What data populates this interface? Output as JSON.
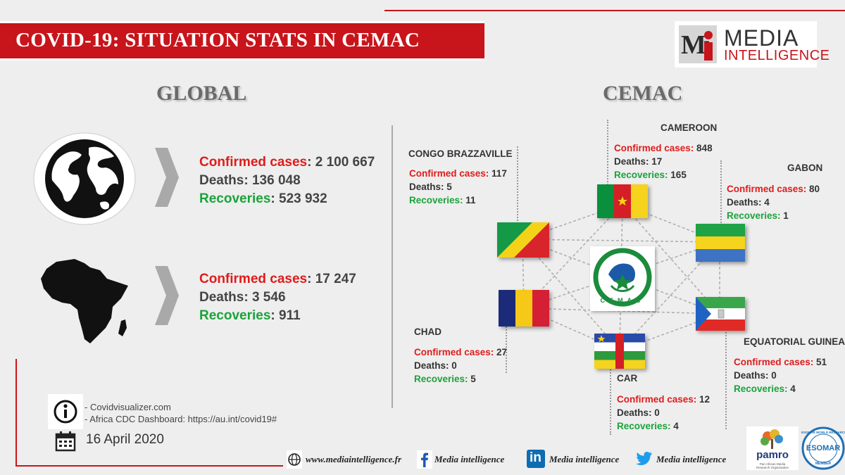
{
  "title": "COVID-19:  SITUATION STATS IN CEMAC",
  "brand": {
    "logo_letter": "Mi",
    "logo_top": "MEDIA",
    "logo_bottom": "INTELLIGENCE"
  },
  "global": {
    "heading": "GLOBAL",
    "world": {
      "confirmed_label": "Confirmed cases",
      "confirmed_value": ": 2 100 667",
      "deaths_label": "Deaths",
      "deaths_value": ": 136 048",
      "recoveries_label": "Recoveries",
      "recoveries_value": ": 523 932"
    },
    "africa": {
      "confirmed_label": "Confirmed cases",
      "confirmed_value": ": 17 247",
      "deaths_label": "Deaths",
      "deaths_value": ": 3 546",
      "recoveries_label": "Recoveries",
      "recoveries_value": ": 911"
    }
  },
  "cemac": {
    "heading": "CEMAC",
    "emblem_text": "CEMAC",
    "countries": {
      "cameroon": {
        "name": "CAMEROON",
        "confirmed": "848",
        "deaths": "17",
        "recoveries": "165"
      },
      "congo": {
        "name": "CONGO BRAZZAVILLE",
        "confirmed": "117",
        "deaths": "5",
        "recoveries": "11"
      },
      "gabon": {
        "name": "GABON",
        "confirmed": "80",
        "deaths": "4",
        "recoveries": "1"
      },
      "chad": {
        "name": "CHAD",
        "confirmed": "27",
        "deaths": "0",
        "recoveries": "5"
      },
      "eq_guinea": {
        "name": "EQUATORIAL GUINEA",
        "confirmed": "51",
        "deaths": "0",
        "recoveries": "4"
      },
      "car": {
        "name": "CAR",
        "confirmed": "12",
        "deaths": "0",
        "recoveries": "4"
      }
    },
    "labels": {
      "confirmed": "Confirmed cases: ",
      "deaths": "Deaths: ",
      "recoveries": "Recoveries: "
    }
  },
  "sources": [
    "- Covidvisualizer.com",
    "- Africa CDC Dashboard: https://au.int/covid19#"
  ],
  "date": "16 April 2020",
  "footer": {
    "website": "www.mediaintelligence.fr",
    "facebook": "Media intelligence",
    "linkedin": "Media intelligence",
    "twitter": "Media intelligence",
    "linkedin_glyph": "in"
  },
  "partners": {
    "pamro": "pamro",
    "pamro_sub": "Pan African Media Research Organisation",
    "esomar": "ESOMAR",
    "esomar_ring": "ESOMAR WORLD RESEARCH",
    "esomar_member": "MEMBER"
  },
  "colors": {
    "accent_red": "#c8141b",
    "confirmed_red": "#e01b1b",
    "recovered_green": "#1aa33a"
  }
}
